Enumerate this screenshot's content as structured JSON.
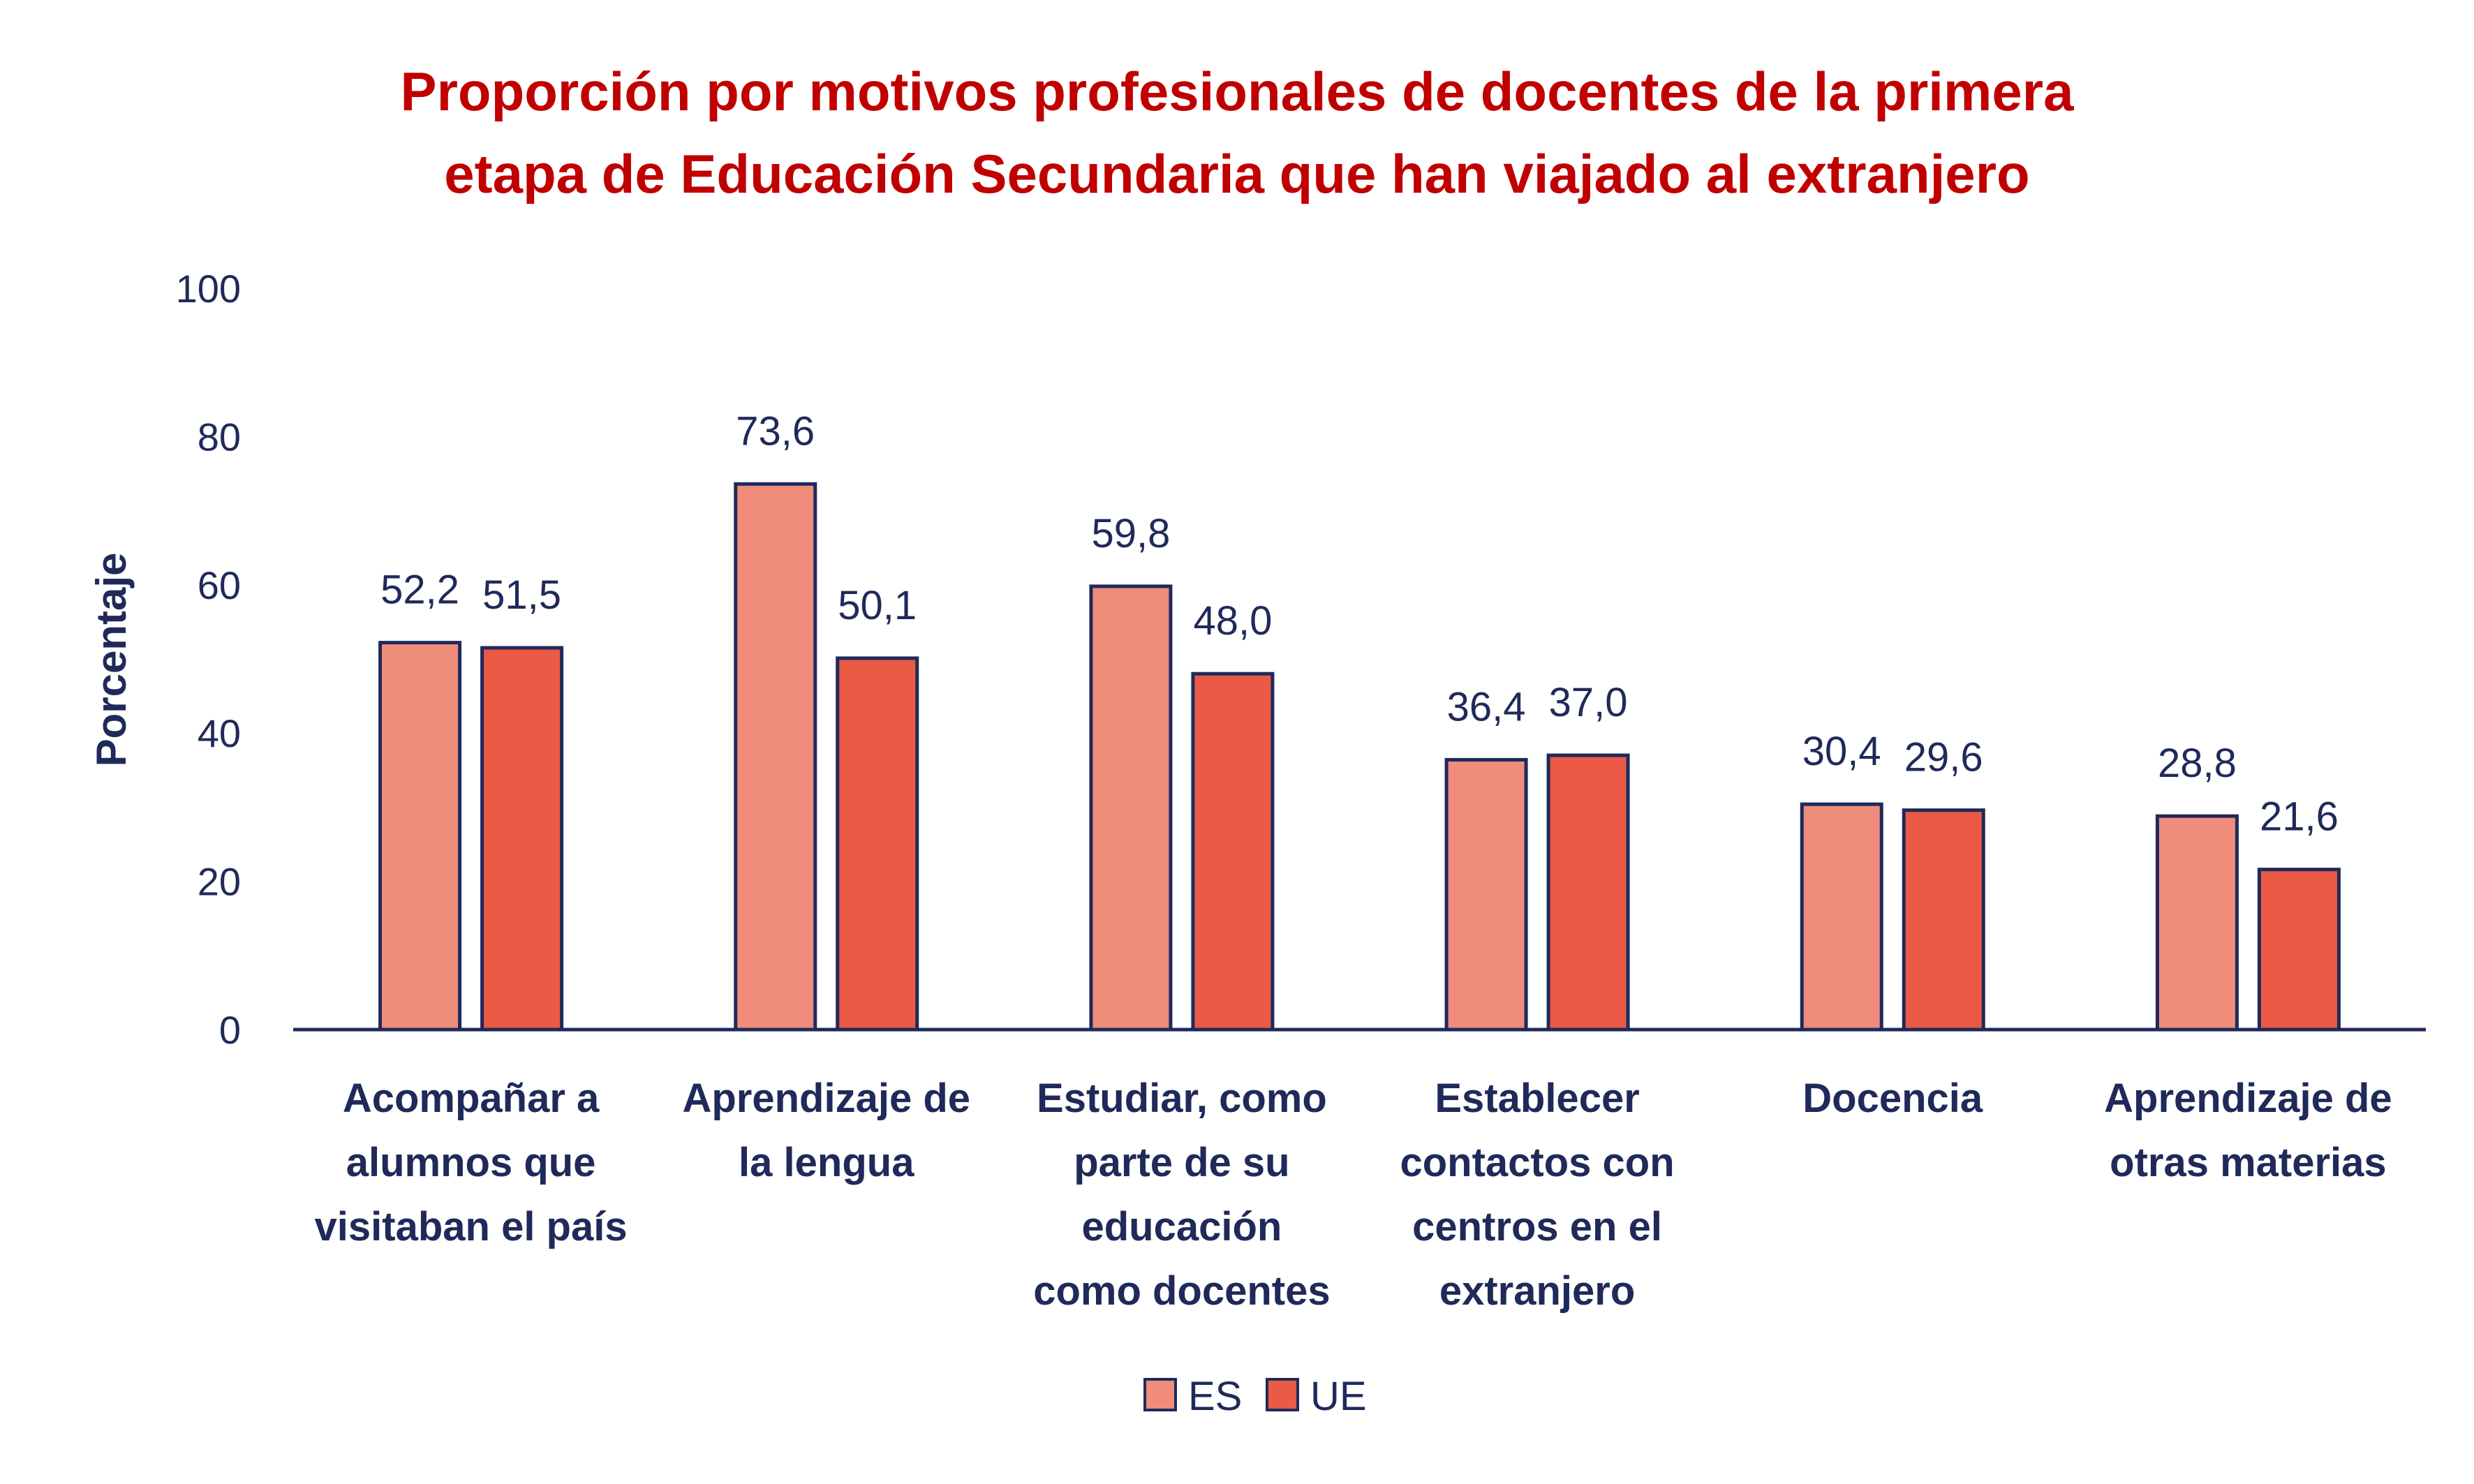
{
  "chart_data": {
    "type": "bar",
    "title": [
      "Proporción por motivos profesionales de docentes de la primera",
      "etapa de Educación Secundaria que han viajado al extranjero"
    ],
    "xlabel": "",
    "ylabel": "Porcentaje",
    "ylim": [
      0,
      100
    ],
    "yticks": [
      "0",
      "20",
      "40",
      "60",
      "80",
      "100"
    ],
    "grid": false,
    "legend_position": "bottom",
    "categories": [
      [
        "Acompañar a",
        "alumnos que",
        "visitaban el país"
      ],
      [
        "Aprendizaje de",
        "la lengua"
      ],
      [
        "Estudiar, como",
        "parte de su",
        "educación",
        "como docentes"
      ],
      [
        "Establecer",
        "contactos con",
        "centros  en el",
        "extranjero"
      ],
      [
        "Docencia"
      ],
      [
        "Aprendizaje de",
        "otras materias"
      ]
    ],
    "series": [
      {
        "name": "ES",
        "color": "#F08C7B",
        "values": [
          52.2,
          73.6,
          59.8,
          36.4,
          30.4,
          28.8
        ],
        "labels": [
          "52,2",
          "73,6",
          "59,8",
          "36,4",
          "30,4",
          "28,8"
        ]
      },
      {
        "name": "UE",
        "color": "#EA5A45",
        "values": [
          51.5,
          50.1,
          48.0,
          37.0,
          29.6,
          21.6
        ],
        "labels": [
          "51,5",
          "50,1",
          "48,0",
          "37,0",
          "29,6",
          "21,6"
        ]
      }
    ],
    "bar_outline_color": "#1F2A5A"
  }
}
